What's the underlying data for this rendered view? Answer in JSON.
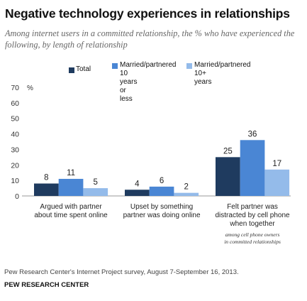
{
  "title": "Negative technology experiences in relationships",
  "subtitle": "Among internet users in a committed relationship, the % who have experienced the following, by length of relationship",
  "legend": [
    {
      "label_lines": [
        "Total"
      ],
      "color": "#1f3b5f"
    },
    {
      "label_lines": [
        "Married/partnered",
        "10 years or less"
      ],
      "color": "#4a86d4"
    },
    {
      "label_lines": [
        "Married/partnered",
        "10+ years"
      ],
      "color": "#94bbea"
    }
  ],
  "chart_data": {
    "type": "bar",
    "categories": [
      [
        "Argued with partner",
        "about time spent online"
      ],
      [
        "Upset by something",
        "partner was doing online"
      ],
      [
        "Felt partner was",
        "distracted by cell phone",
        "when together"
      ]
    ],
    "series": [
      {
        "name": "Total",
        "values": [
          8,
          4,
          25
        ]
      },
      {
        "name": "Married/partnered 10 years or less",
        "values": [
          11,
          6,
          36
        ]
      },
      {
        "name": "Married/partnered 10+ years",
        "values": [
          5,
          2,
          17
        ]
      }
    ],
    "colors": [
      "#1f3b5f",
      "#4a86d4",
      "#94bbea"
    ],
    "ylim": [
      0,
      70
    ],
    "yticks": [
      0,
      10,
      20,
      30,
      40,
      50,
      60,
      70
    ],
    "unit_label": "%",
    "grid": false,
    "annotation_lines": [
      "among cell phone owners",
      "in committed relationships"
    ]
  },
  "footnote": "Pew Research Center's Internet Project survey, August 7-September 16, 2013.",
  "source": "PEW RESEARCH CENTER"
}
